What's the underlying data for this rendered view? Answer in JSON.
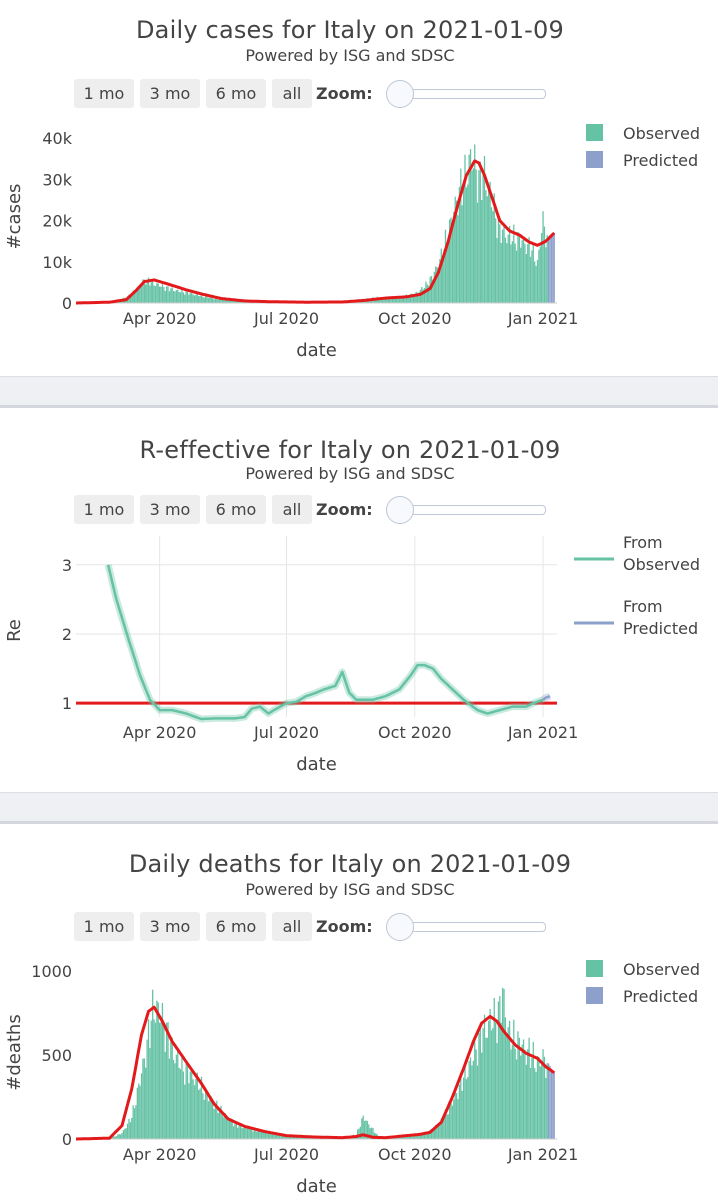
{
  "zoom_buttons": [
    "1 mo",
    "3 mo",
    "6 mo",
    "all"
  ],
  "zoom_label": "Zoom:",
  "colors": {
    "observed": "#66c2a5",
    "predicted": "#8da0cb",
    "trend": "#e31a1c",
    "reference": "#e31a1c"
  },
  "panels": [
    {
      "title": "Daily cases for Italy on 2021-01-09",
      "subtitle": "Powered by ISG and SDSC"
    },
    {
      "title": "R-effective for Italy on 2021-01-09",
      "subtitle": "Powered by ISG and SDSC"
    },
    {
      "title": "Daily deaths for Italy on 2021-01-09",
      "subtitle": "Powered by ISG and SDSC"
    }
  ],
  "chart_data": [
    {
      "type": "bar",
      "title": "Daily cases for Italy on 2021-01-09",
      "subtitle": "Powered by ISG and SDSC",
      "xlabel": "date",
      "ylabel": "#cases",
      "xlim": [
        "2020-02-01",
        "2021-01-11"
      ],
      "ylim": [
        0,
        42000
      ],
      "x_ticks": [
        "2020-04-01",
        "2020-07-01",
        "2020-10-01",
        "2021-01-01"
      ],
      "x_tick_labels": [
        "Apr 2020",
        "Jul 2020",
        "Oct 2020",
        "Jan 2021"
      ],
      "y_ticks": [
        0,
        10000,
        20000,
        30000,
        40000
      ],
      "y_tick_labels": [
        "0",
        "10k",
        "20k",
        "30k",
        "40k"
      ],
      "grid": false,
      "legend": {
        "position": "top-right",
        "entries": [
          "Observed",
          "Predicted"
        ]
      },
      "observed_series": {
        "name": "Observed",
        "dates": [
          "2020-02-01",
          "2020-02-20",
          "2020-03-01",
          "2020-03-10",
          "2020-03-15",
          "2020-03-21",
          "2020-03-28",
          "2020-04-05",
          "2020-04-15",
          "2020-04-25",
          "2020-05-10",
          "2020-05-25",
          "2020-06-10",
          "2020-06-25",
          "2020-07-15",
          "2020-08-01",
          "2020-08-15",
          "2020-08-25",
          "2020-09-05",
          "2020-09-20",
          "2020-10-01",
          "2020-10-08",
          "2020-10-14",
          "2020-10-20",
          "2020-10-26",
          "2020-11-01",
          "2020-11-06",
          "2020-11-10",
          "2020-11-13",
          "2020-11-16",
          "2020-11-20",
          "2020-11-25",
          "2020-12-01",
          "2020-12-06",
          "2020-12-12",
          "2020-12-18",
          "2020-12-24",
          "2020-12-28",
          "2021-01-01",
          "2021-01-05"
        ],
        "values": [
          0,
          5,
          500,
          2000,
          3500,
          6500,
          5500,
          4300,
          3300,
          2500,
          1200,
          600,
          300,
          200,
          200,
          300,
          500,
          1100,
          1500,
          1700,
          2500,
          4500,
          7500,
          13000,
          21000,
          30000,
          35000,
          40000,
          39000,
          34000,
          36000,
          29000,
          20000,
          19000,
          18000,
          17000,
          15000,
          11000,
          23000,
          16000
        ]
      },
      "predicted_series": {
        "name": "Predicted",
        "dates": [
          "2021-01-05",
          "2021-01-07",
          "2021-01-09"
        ],
        "values": [
          16000,
          16500,
          17000
        ]
      },
      "trend_line": {
        "dates": [
          "2020-02-01",
          "2020-02-25",
          "2020-03-08",
          "2020-03-15",
          "2020-03-21",
          "2020-03-28",
          "2020-04-08",
          "2020-04-20",
          "2020-05-01",
          "2020-05-15",
          "2020-06-01",
          "2020-06-20",
          "2020-07-15",
          "2020-08-10",
          "2020-08-25",
          "2020-09-10",
          "2020-09-25",
          "2020-10-05",
          "2020-10-12",
          "2020-10-18",
          "2020-10-25",
          "2020-11-01",
          "2020-11-07",
          "2020-11-13",
          "2020-11-16",
          "2020-11-20",
          "2020-11-25",
          "2020-12-01",
          "2020-12-08",
          "2020-12-15",
          "2020-12-22",
          "2020-12-28",
          "2021-01-03",
          "2021-01-09"
        ],
        "values": [
          0,
          200,
          800,
          3000,
          5200,
          5600,
          4500,
          3200,
          2200,
          1100,
          500,
          300,
          200,
          250,
          600,
          1200,
          1500,
          2100,
          3500,
          7500,
          15000,
          24000,
          31000,
          34500,
          34000,
          31000,
          26000,
          20000,
          17500,
          16500,
          14800,
          14000,
          15000,
          17000
        ]
      }
    },
    {
      "type": "line",
      "title": "R-effective for Italy on 2021-01-09",
      "subtitle": "Powered by ISG and SDSC",
      "xlabel": "date",
      "ylabel": "Re",
      "xlim": [
        "2020-02-01",
        "2021-01-11"
      ],
      "ylim": [
        0.8,
        3.3
      ],
      "x_ticks": [
        "2020-04-01",
        "2020-07-01",
        "2020-10-01",
        "2021-01-01"
      ],
      "x_tick_labels": [
        "Apr 2020",
        "Jul 2020",
        "Oct 2020",
        "Jan 2021"
      ],
      "y_ticks": [
        1,
        2,
        3
      ],
      "y_tick_labels": [
        "1",
        "2",
        "3"
      ],
      "grid": true,
      "legend": {
        "position": "top-right",
        "entries": [
          "From Observed",
          "From Predicted"
        ]
      },
      "series": [
        {
          "name": "From Observed",
          "dates": [
            "2020-02-24",
            "2020-03-01",
            "2020-03-10",
            "2020-03-18",
            "2020-03-25",
            "2020-04-01",
            "2020-04-10",
            "2020-04-20",
            "2020-05-01",
            "2020-05-10",
            "2020-05-20",
            "2020-05-25",
            "2020-06-01",
            "2020-06-06",
            "2020-06-12",
            "2020-06-18",
            "2020-06-22",
            "2020-07-01",
            "2020-07-08",
            "2020-07-15",
            "2020-07-22",
            "2020-07-28",
            "2020-08-05",
            "2020-08-10",
            "2020-08-15",
            "2020-08-20",
            "2020-08-26",
            "2020-09-01",
            "2020-09-10",
            "2020-09-20",
            "2020-09-28",
            "2020-10-03",
            "2020-10-08",
            "2020-10-14",
            "2020-10-20",
            "2020-10-28",
            "2020-11-05",
            "2020-11-15",
            "2020-11-22",
            "2020-12-01",
            "2020-12-10",
            "2020-12-20",
            "2020-12-25",
            "2021-01-01"
          ],
          "values": [
            3.0,
            2.5,
            1.9,
            1.4,
            1.05,
            0.9,
            0.9,
            0.85,
            0.77,
            0.78,
            0.78,
            0.78,
            0.8,
            0.92,
            0.95,
            0.85,
            0.9,
            1.0,
            1.02,
            1.1,
            1.15,
            1.2,
            1.25,
            1.45,
            1.15,
            1.05,
            1.05,
            1.05,
            1.1,
            1.2,
            1.4,
            1.55,
            1.55,
            1.5,
            1.35,
            1.2,
            1.05,
            0.9,
            0.85,
            0.9,
            0.95,
            0.95,
            1.0,
            1.05
          ]
        },
        {
          "name": "From Predicted",
          "dates": [
            "2021-01-01",
            "2021-01-03",
            "2021-01-06"
          ],
          "values": [
            1.05,
            1.08,
            1.1
          ]
        }
      ],
      "reference_line": {
        "y": 1
      }
    },
    {
      "type": "bar",
      "title": "Daily deaths for Italy on 2021-01-09",
      "subtitle": "Powered by ISG and SDSC",
      "xlabel": "date",
      "ylabel": "#deaths",
      "xlim": [
        "2020-02-01",
        "2021-01-11"
      ],
      "ylim": [
        0,
        1030
      ],
      "x_ticks": [
        "2020-04-01",
        "2020-07-01",
        "2020-10-01",
        "2021-01-01"
      ],
      "x_tick_labels": [
        "Apr 2020",
        "Jul 2020",
        "Oct 2020",
        "Jan 2021"
      ],
      "y_ticks": [
        0,
        500,
        1000
      ],
      "y_tick_labels": [
        "0",
        "500",
        "1000"
      ],
      "grid": false,
      "legend": {
        "position": "top-right",
        "entries": [
          "Observed",
          "Predicted"
        ]
      },
      "observed_series": {
        "name": "Observed",
        "dates": [
          "2020-02-01",
          "2020-02-25",
          "2020-03-05",
          "2020-03-12",
          "2020-03-18",
          "2020-03-24",
          "2020-03-28",
          "2020-04-03",
          "2020-04-10",
          "2020-04-18",
          "2020-04-26",
          "2020-05-05",
          "2020-05-15",
          "2020-05-25",
          "2020-06-05",
          "2020-06-20",
          "2020-07-05",
          "2020-07-25",
          "2020-08-10",
          "2020-08-20",
          "2020-08-25",
          "2020-09-05",
          "2020-09-20",
          "2020-10-01",
          "2020-10-10",
          "2020-10-20",
          "2020-10-28",
          "2020-11-05",
          "2020-11-12",
          "2020-11-18",
          "2020-11-24",
          "2020-11-30",
          "2020-12-03",
          "2020-12-08",
          "2020-12-15",
          "2020-12-22",
          "2020-12-28",
          "2021-01-02",
          "2021-01-05"
        ],
        "values": [
          0,
          2,
          40,
          150,
          400,
          700,
          920,
          820,
          610,
          480,
          420,
          300,
          190,
          100,
          70,
          40,
          15,
          10,
          8,
          30,
          150,
          15,
          18,
          25,
          40,
          120,
          250,
          420,
          560,
          720,
          800,
          840,
          990,
          700,
          650,
          590,
          520,
          560,
          450
        ]
      },
      "predicted_series": {
        "name": "Predicted",
        "dates": [
          "2021-01-05",
          "2021-01-07",
          "2021-01-09"
        ],
        "values": [
          450,
          420,
          400
        ]
      },
      "trend_line": {
        "dates": [
          "2020-02-01",
          "2020-02-25",
          "2020-03-05",
          "2020-03-12",
          "2020-03-19",
          "2020-03-24",
          "2020-03-28",
          "2020-04-03",
          "2020-04-10",
          "2020-04-20",
          "2020-05-01",
          "2020-05-10",
          "2020-05-20",
          "2020-06-01",
          "2020-06-15",
          "2020-07-01",
          "2020-07-20",
          "2020-08-10",
          "2020-08-20",
          "2020-08-25",
          "2020-09-01",
          "2020-09-10",
          "2020-09-25",
          "2020-10-05",
          "2020-10-12",
          "2020-10-20",
          "2020-10-28",
          "2020-11-05",
          "2020-11-12",
          "2020-11-18",
          "2020-11-24",
          "2020-11-29",
          "2020-12-04",
          "2020-12-12",
          "2020-12-20",
          "2020-12-28",
          "2021-01-03",
          "2021-01-09"
        ],
        "values": [
          0,
          5,
          80,
          300,
          620,
          760,
          785,
          700,
          580,
          460,
          330,
          210,
          120,
          75,
          45,
          20,
          12,
          8,
          15,
          25,
          10,
          8,
          20,
          28,
          40,
          100,
          250,
          420,
          580,
          690,
          730,
          700,
          640,
          560,
          510,
          480,
          430,
          395
        ]
      }
    }
  ]
}
